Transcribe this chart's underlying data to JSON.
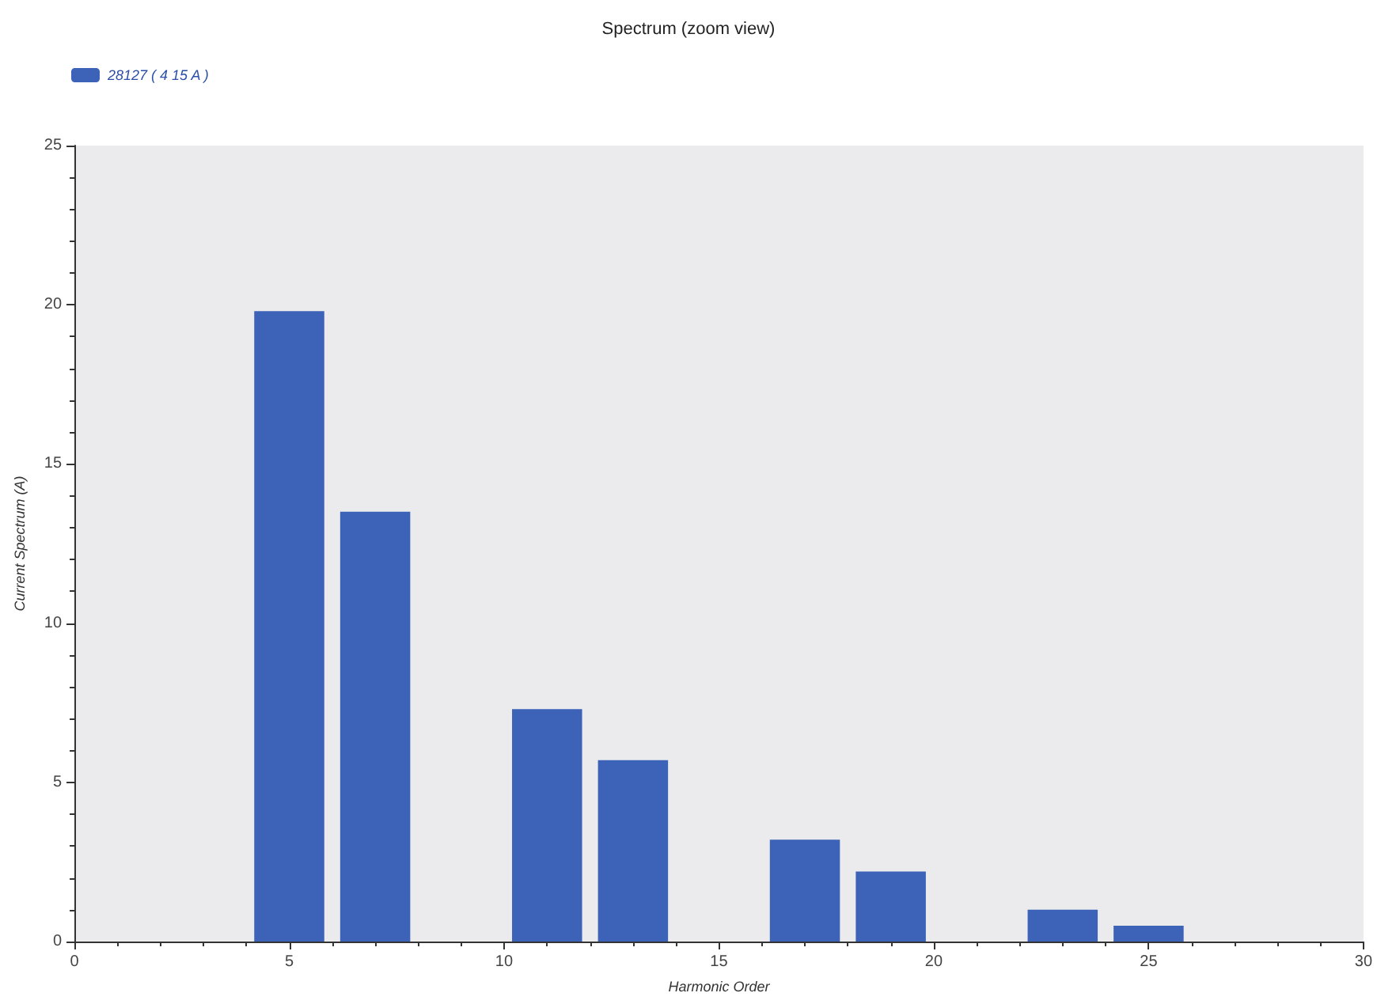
{
  "chart_data": {
    "type": "bar",
    "title": "Spectrum (zoom view)",
    "xlabel": "Harmonic Order",
    "ylabel": "Current Spectrum (A)",
    "x": [
      5,
      7,
      11,
      13,
      17,
      19,
      23,
      25
    ],
    "series": [
      {
        "name": "28127 ( 4 15 A )",
        "color": "#3d63b8",
        "values": [
          19.8,
          13.5,
          7.3,
          5.7,
          3.2,
          2.2,
          1.0,
          0.5
        ]
      }
    ],
    "xlim": [
      0,
      30
    ],
    "xticks": [
      0,
      5,
      10,
      15,
      20,
      25,
      30
    ],
    "ylim": [
      0,
      25
    ],
    "yticks": [
      0,
      5,
      10,
      15,
      20,
      25
    ],
    "grid": false,
    "legend": "top left"
  }
}
